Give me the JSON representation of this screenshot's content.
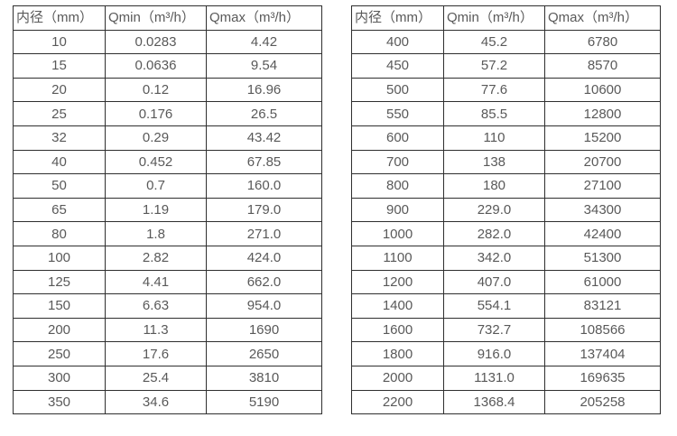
{
  "page": {
    "background_color": "#ffffff",
    "border_color": "#2f2f2f",
    "text_color": "#595959"
  },
  "column_keys": [
    "diameter",
    "qmin",
    "qmax"
  ],
  "tables": [
    {
      "name": "flow-table-small-diameters",
      "headers": [
        "内径（mm）",
        "Qmin（m³/h）",
        "Qmax（m³/h）"
      ],
      "rows": [
        [
          "10",
          "0.0283",
          "4.42"
        ],
        [
          "15",
          "0.0636",
          "9.54"
        ],
        [
          "20",
          "0.12",
          "16.96"
        ],
        [
          "25",
          "0.176",
          "26.5"
        ],
        [
          "32",
          "0.29",
          "43.42"
        ],
        [
          "40",
          "0.452",
          "67.85"
        ],
        [
          "50",
          "0.7",
          "160.0"
        ],
        [
          "65",
          "1.19",
          "179.0"
        ],
        [
          "80",
          "1.8",
          "271.0"
        ],
        [
          "100",
          "2.82",
          "424.0"
        ],
        [
          "125",
          "4.41",
          "662.0"
        ],
        [
          "150",
          "6.63",
          "954.0"
        ],
        [
          "200",
          "11.3",
          "1690"
        ],
        [
          "250",
          "17.6",
          "2650"
        ],
        [
          "300",
          "25.4",
          "3810"
        ],
        [
          "350",
          "34.6",
          "5190"
        ]
      ]
    },
    {
      "name": "flow-table-large-diameters",
      "headers": [
        "内径（mm）",
        "Qmin（m³/h）",
        "Qmax（m³/h）"
      ],
      "rows": [
        [
          "400",
          "45.2",
          "6780"
        ],
        [
          "450",
          "57.2",
          "8570"
        ],
        [
          "500",
          "77.6",
          "10600"
        ],
        [
          "550",
          "85.5",
          "12800"
        ],
        [
          "600",
          "110",
          "15200"
        ],
        [
          "700",
          "138",
          "20700"
        ],
        [
          "800",
          "180",
          "27100"
        ],
        [
          "900",
          "229.0",
          "34300"
        ],
        [
          "1000",
          "282.0",
          "42400"
        ],
        [
          "1100",
          "342.0",
          "51300"
        ],
        [
          "1200",
          "407.0",
          "61000"
        ],
        [
          "1400",
          "554.1",
          "83121"
        ],
        [
          "1600",
          "732.7",
          "108566"
        ],
        [
          "1800",
          "916.0",
          "137404"
        ],
        [
          "2000",
          "1131.0",
          "169635"
        ],
        [
          "2200",
          "1368.4",
          "205258"
        ]
      ]
    }
  ]
}
